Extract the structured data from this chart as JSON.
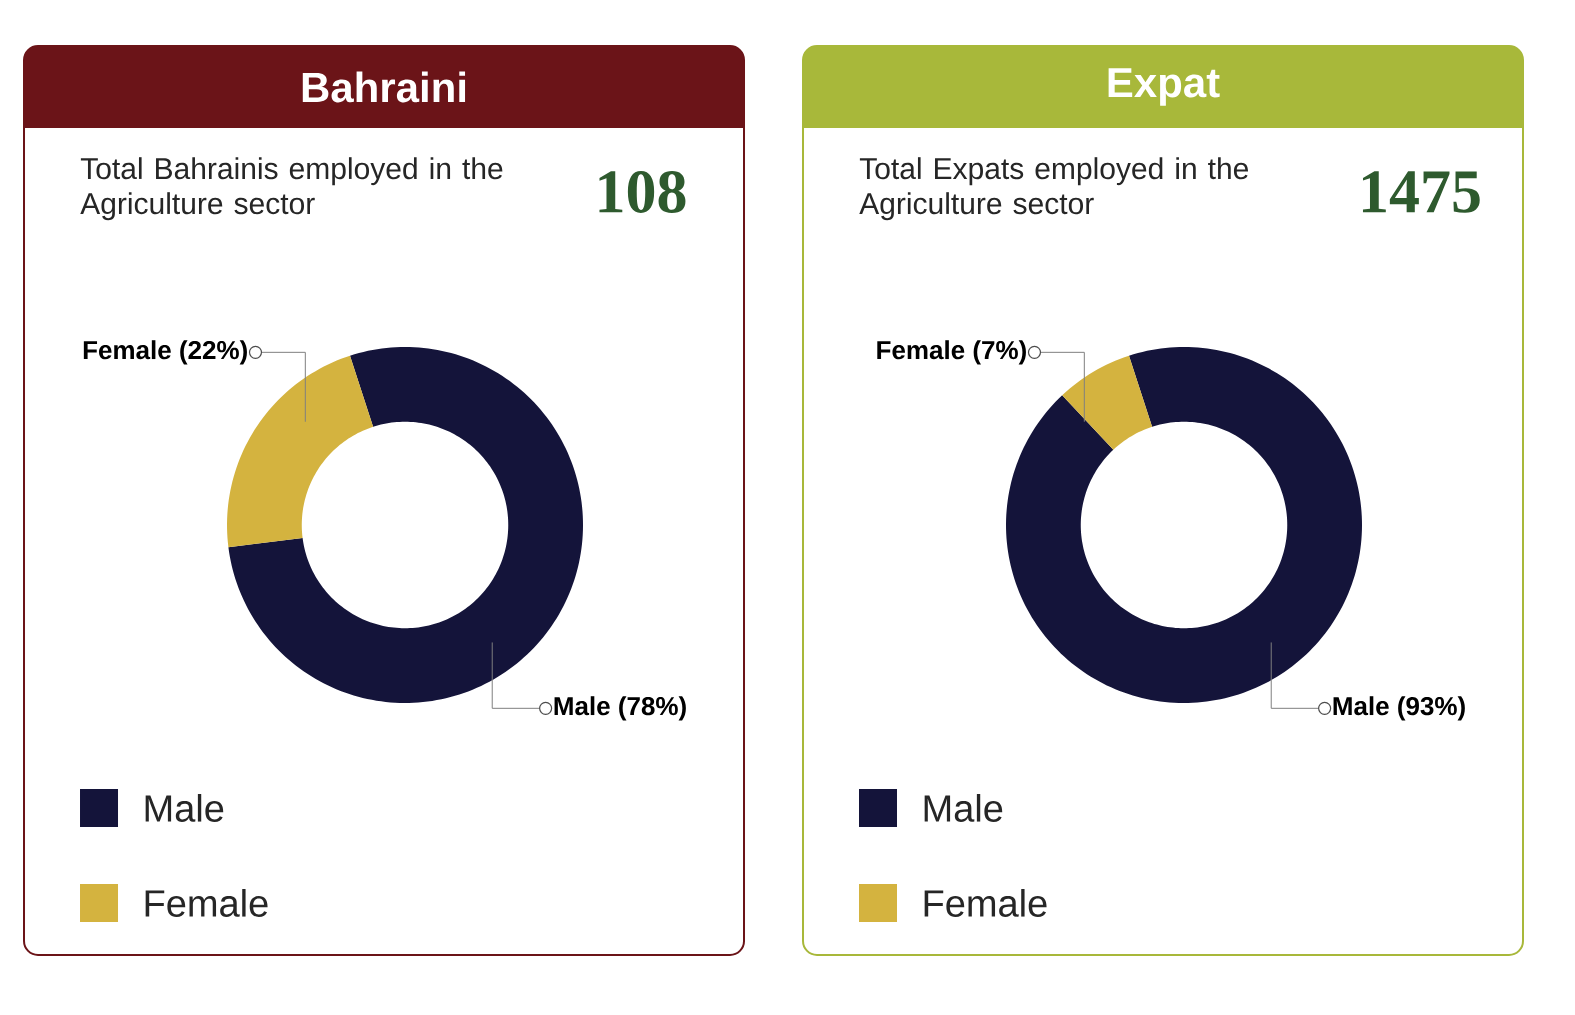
{
  "chart_data": [
    {
      "type": "donut",
      "title": "Bahraini",
      "subtitle": "Total Bahrainis employed in the Agriculture sector",
      "annotations": [
        "108"
      ],
      "categories": [
        "Male",
        "Female"
      ],
      "values": [
        78,
        22
      ],
      "colors": [
        "#14143a",
        "#d4b33f"
      ],
      "value_labels": [
        "Male (78%)",
        "Female (22%)"
      ],
      "legend": "bottom"
    },
    {
      "type": "donut",
      "title": "Expat",
      "subtitle": "Total Expats employed in the Agriculture sector",
      "annotations": [
        "1475"
      ],
      "categories": [
        "Male",
        "Female"
      ],
      "values": [
        93,
        7
      ],
      "colors": [
        "#14143a",
        "#d4b33f"
      ],
      "value_labels": [
        "Male (93%)",
        "Female (7%)"
      ],
      "legend": "bottom"
    }
  ]
}
